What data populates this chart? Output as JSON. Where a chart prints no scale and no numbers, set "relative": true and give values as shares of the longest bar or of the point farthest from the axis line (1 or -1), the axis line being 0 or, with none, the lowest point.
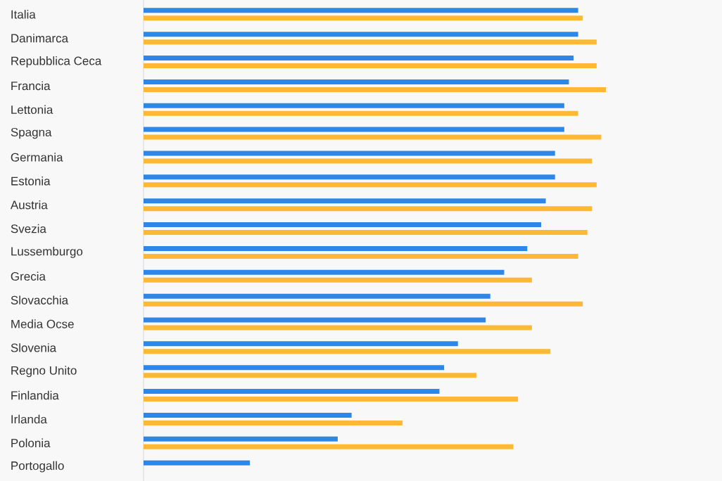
{
  "chart_data": {
    "type": "bar",
    "orientation": "horizontal",
    "relative": true,
    "categories": [
      "Italia",
      "Danimarca",
      "Repubblica Ceca",
      "Francia",
      "Lettonia",
      "Spagna",
      "Germania",
      "Estonia",
      "Austria",
      "Svezia",
      "Lussemburgo",
      "Grecia",
      "Slovacchia",
      "Media Ocse",
      "Slovenia",
      "Regno Unito",
      "Finlandia",
      "Irlanda",
      "Polonia",
      "Portogallo"
    ],
    "series": [
      {
        "color": "#2e86e8",
        "values": [
          0.94,
          0.94,
          0.93,
          0.92,
          0.91,
          0.91,
          0.89,
          0.89,
          0.87,
          0.86,
          0.83,
          0.78,
          0.75,
          0.74,
          0.68,
          0.65,
          0.64,
          0.45,
          0.42,
          0.23
        ]
      },
      {
        "color": "#fdb834",
        "values": [
          0.95,
          0.98,
          0.98,
          1,
          0.94,
          0.99,
          0.97,
          0.98,
          0.97,
          0.96,
          0.94,
          0.84,
          0.95,
          0.84,
          0.88,
          0.72,
          0.81,
          0.56,
          0.8,
          null
        ]
      }
    ]
  }
}
